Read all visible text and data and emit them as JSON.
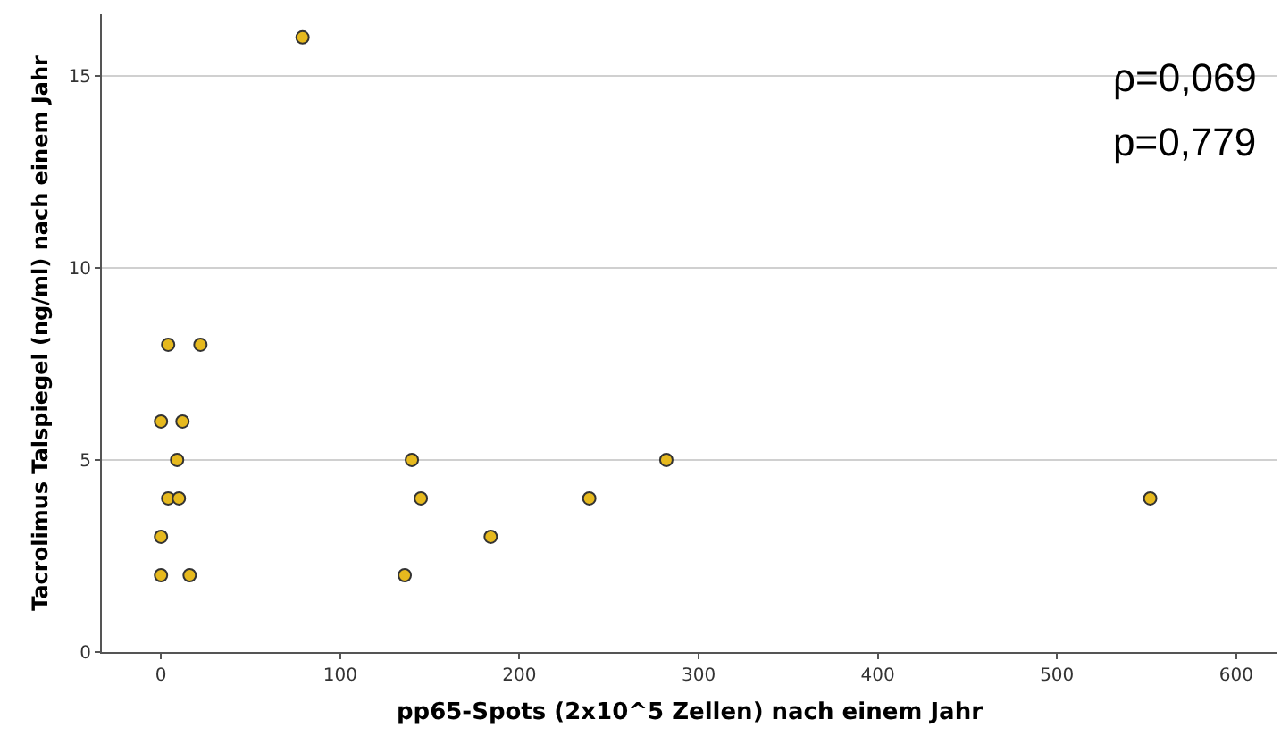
{
  "chart_data": {
    "type": "scatter",
    "xlabel": "pp65-Spots (2x10^5 Zellen) nach einem Jahr",
    "ylabel": "Tacrolimus Talspiegel (ng/ml) nach einem Jahr",
    "x": [
      79,
      4,
      22,
      0,
      12,
      9,
      140,
      282,
      4,
      10,
      145,
      239,
      552,
      0,
      184,
      0,
      16,
      136
    ],
    "values": [
      16,
      8,
      8,
      6,
      6,
      5,
      5,
      5,
      4,
      4,
      4,
      4,
      4,
      3,
      3,
      2,
      2,
      2
    ],
    "color": "#e6b91e",
    "marker": "circle",
    "xlim": [
      -33,
      623
    ],
    "ylim": [
      0,
      16.6
    ],
    "xticks": [
      0,
      100,
      200,
      300,
      400,
      500,
      600
    ],
    "yticks": [
      0,
      5,
      10,
      15
    ],
    "grid": "y",
    "annotations": [
      "ρ=0,069",
      "p=0,779"
    ]
  }
}
